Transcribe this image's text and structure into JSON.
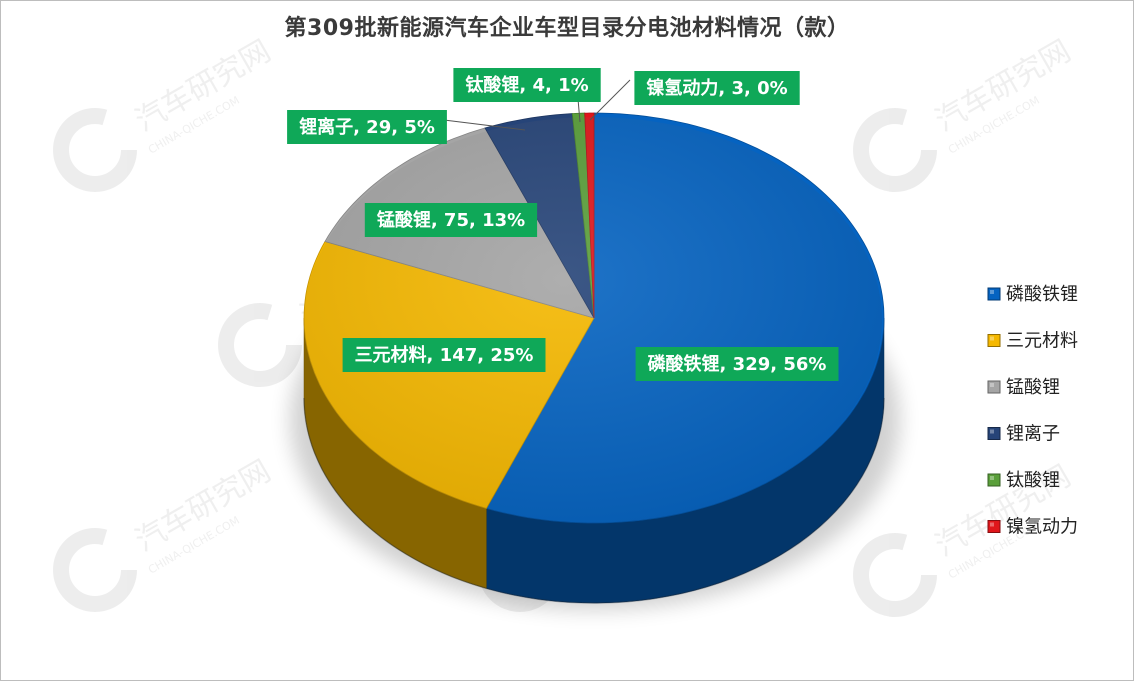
{
  "chart_data": {
    "type": "pie",
    "title": "第309批新能源汽车企业车型目录分电池材料情况（款）",
    "categories": [
      "磷酸铁锂",
      "三元材料",
      "锰酸锂",
      "锂离子",
      "钛酸锂",
      "镍氢动力"
    ],
    "values": [
      329,
      147,
      75,
      29,
      4,
      3
    ],
    "percents": [
      "56%",
      "25%",
      "13%",
      "5%",
      "1%",
      "0%"
    ],
    "data_labels": [
      "磷酸铁锂, 329, 56%",
      "三元材料, 147, 25%",
      "锰酸锂, 75, 13%",
      "锂离子, 29, 5%",
      "钛酸锂, 4, 1%",
      "镍氢动力, 3, 0%"
    ],
    "colors": [
      "#0563C1",
      "#F5B800",
      "#A5A5A5",
      "#264478",
      "#5A9F3A",
      "#E0161B"
    ],
    "label_bg_color": "#0FA858",
    "legend_position": "right",
    "style": "3d-tilted-pie"
  },
  "watermark": {
    "brand": "汽车研究网",
    "site": "CHINA-QICHE.COM"
  }
}
